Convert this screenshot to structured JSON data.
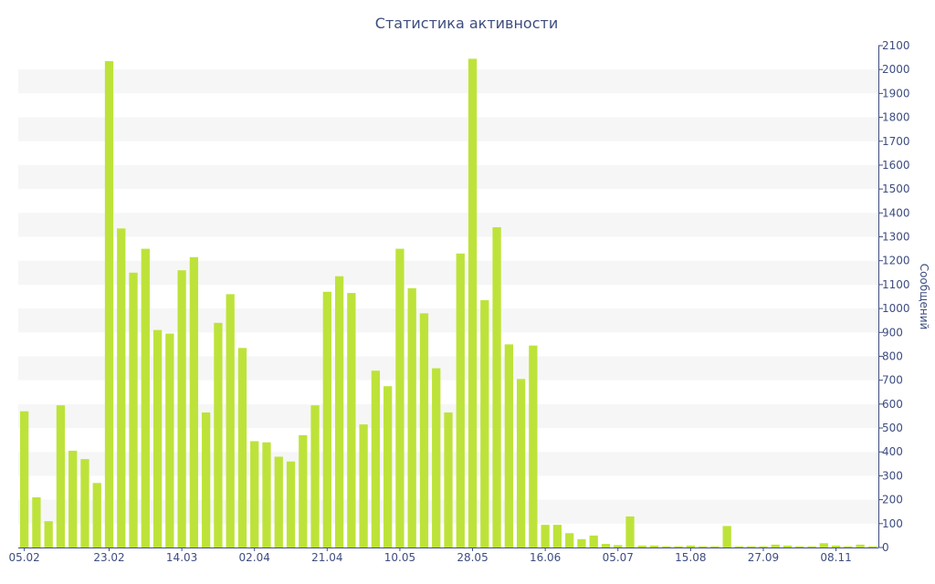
{
  "chart_data": {
    "type": "bar",
    "title": "Статистика активности",
    "ylabel": "Сообщений",
    "xlabel": "",
    "ylim": [
      0,
      2100
    ],
    "y_ticks": [
      0,
      100,
      200,
      300,
      400,
      500,
      600,
      700,
      800,
      900,
      1000,
      1100,
      1200,
      1300,
      1400,
      1500,
      1600,
      1700,
      1800,
      1900,
      2000,
      2100
    ],
    "y_axis_position": "right",
    "grid": "alternating horizontal bands",
    "x_tick_labels": [
      "05.02",
      "23.02",
      "14.03",
      "02.04",
      "21.04",
      "10.05",
      "28.05",
      "16.06",
      "05.07",
      "15.08",
      "27.09",
      "08.11"
    ],
    "x_tick_label_bar_indices": [
      0,
      7,
      13,
      19,
      25,
      31,
      37,
      43,
      49,
      55,
      61,
      67
    ],
    "colors": {
      "bar": "#bde33a",
      "band": "#f6f6f6",
      "text": "#3e4d80",
      "axis": "#3e4d80"
    },
    "values": [
      570,
      210,
      110,
      595,
      405,
      370,
      270,
      2035,
      1335,
      1150,
      1250,
      910,
      895,
      1160,
      1215,
      565,
      940,
      1060,
      835,
      445,
      440,
      380,
      360,
      470,
      595,
      1070,
      1135,
      1065,
      515,
      740,
      675,
      1250,
      1085,
      980,
      750,
      565,
      1230,
      2045,
      1035,
      1340,
      850,
      705,
      845,
      95,
      95,
      60,
      35,
      50,
      15,
      10,
      130,
      8,
      8,
      5,
      5,
      8,
      5,
      5,
      90,
      5,
      5,
      5,
      12,
      8,
      5,
      5,
      18,
      8,
      5,
      12,
      5
    ]
  }
}
